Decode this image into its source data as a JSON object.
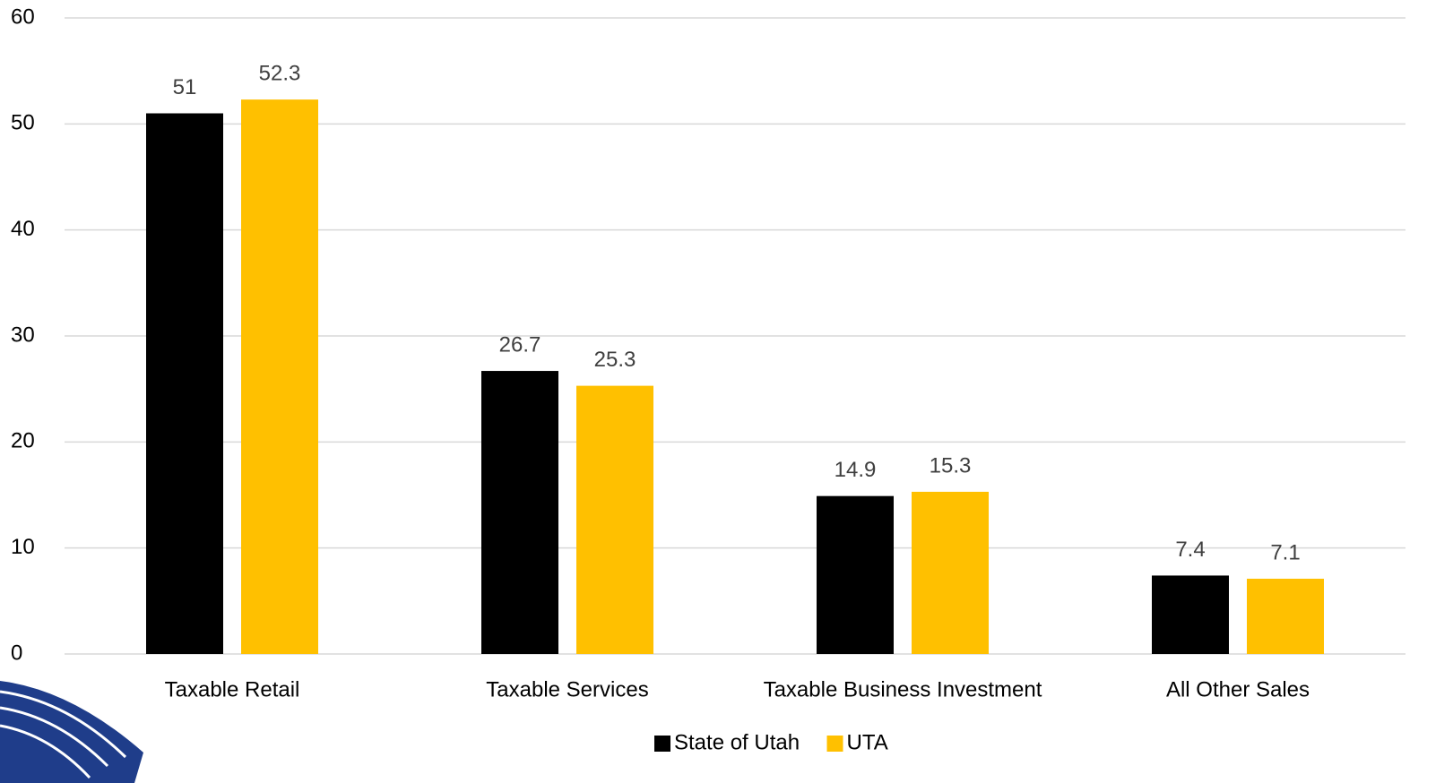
{
  "chart_data": {
    "type": "bar",
    "categories": [
      "Taxable Retail",
      "Taxable Services",
      "Taxable Business Investment",
      "All Other Sales"
    ],
    "series": [
      {
        "name": "State of Utah",
        "color": "#000000",
        "values": [
          51,
          26.7,
          14.9,
          7.4
        ]
      },
      {
        "name": "UTA",
        "color": "#ffc000",
        "values": [
          52.3,
          25.3,
          15.3,
          7.1
        ]
      }
    ],
    "ylim": [
      0,
      60
    ],
    "yticks": [
      0,
      10,
      20,
      30,
      40,
      50,
      60
    ],
    "grid": true,
    "legend": "bottom"
  }
}
